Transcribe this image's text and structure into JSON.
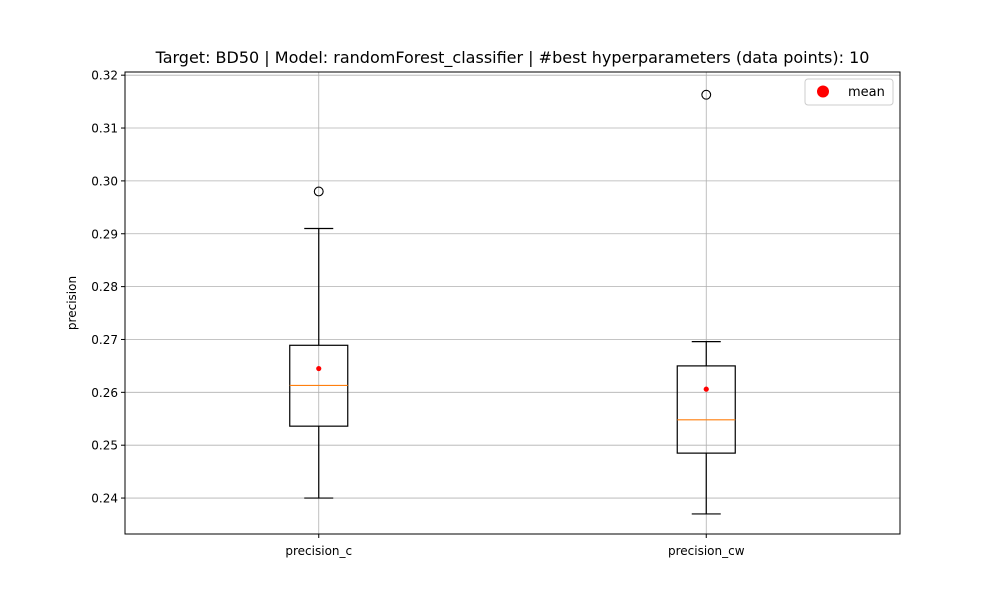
{
  "chart_data": {
    "type": "box",
    "title": "Target: BD50 | Model: randomForest_classifier | #best hyperparameters (data points): 10",
    "xlabel": "",
    "ylabel": "precision",
    "ylim": [
      0.2332,
      0.3206
    ],
    "yticks": [
      0.24,
      0.25,
      0.26,
      0.27,
      0.28,
      0.29,
      0.3,
      0.31,
      0.32
    ],
    "yticks_labels": [
      "0.24",
      "0.25",
      "0.26",
      "0.27",
      "0.28",
      "0.29",
      "0.30",
      "0.31",
      "0.32"
    ],
    "grid": true,
    "legend": {
      "position": "top-right",
      "entries": [
        {
          "label": "mean",
          "color": "#ff0000"
        }
      ]
    },
    "categories": [
      "precision_c",
      "precision_cw"
    ],
    "boxes": [
      {
        "name": "precision_c",
        "whisker_low": 0.24,
        "q1": 0.2536,
        "median": 0.2613,
        "q3": 0.2689,
        "whisker_high": 0.291,
        "mean": 0.2645,
        "outliers": [
          0.298
        ]
      },
      {
        "name": "precision_cw",
        "whisker_low": 0.237,
        "q1": 0.2485,
        "median": 0.2548,
        "q3": 0.265,
        "whisker_high": 0.2696,
        "mean": 0.2606,
        "outliers": [
          0.3163
        ]
      }
    ],
    "colors": {
      "box": "#000000",
      "median": "#ff7f0e",
      "mean": "#ff0000",
      "grid": "#b0b0b0"
    }
  }
}
